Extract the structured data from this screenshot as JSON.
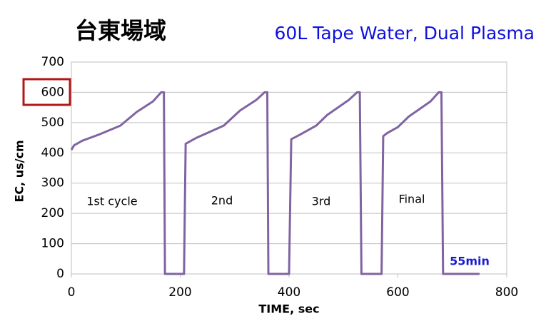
{
  "chart_data": {
    "type": "line",
    "title": "台東場域",
    "subtitle": "60L Tape Water, Dual Plasma",
    "x_label": "TIME, sec",
    "y_label": "EC, us/cm",
    "x": [
      0,
      5,
      20,
      50,
      90,
      120,
      150,
      165,
      170,
      172,
      207,
      210,
      230,
      280,
      310,
      340,
      355,
      360,
      362,
      400,
      404,
      420,
      450,
      470,
      510,
      525,
      530,
      533,
      570,
      573,
      580,
      600,
      620,
      660,
      675,
      680,
      683,
      750
    ],
    "series": [
      {
        "name": "EC",
        "color": "#8064a2",
        "values": [
          410,
          425,
          440,
          460,
          490,
          535,
          570,
          600,
          600,
          0,
          0,
          430,
          450,
          490,
          540,
          575,
          600,
          600,
          0,
          0,
          445,
          460,
          490,
          525,
          575,
          600,
          600,
          0,
          0,
          455,
          465,
          485,
          520,
          570,
          600,
          600,
          0,
          0
        ]
      }
    ],
    "xlim": [
      0,
      800
    ],
    "xticks": [
      0,
      200,
      400,
      600,
      800
    ],
    "ylim": [
      0,
      700
    ],
    "yticks": [
      0,
      100,
      200,
      300,
      400,
      500,
      600,
      700
    ],
    "grid": true,
    "annotations": [
      "1st cycle",
      "2nd",
      "3rd",
      "Final",
      "55min"
    ]
  }
}
